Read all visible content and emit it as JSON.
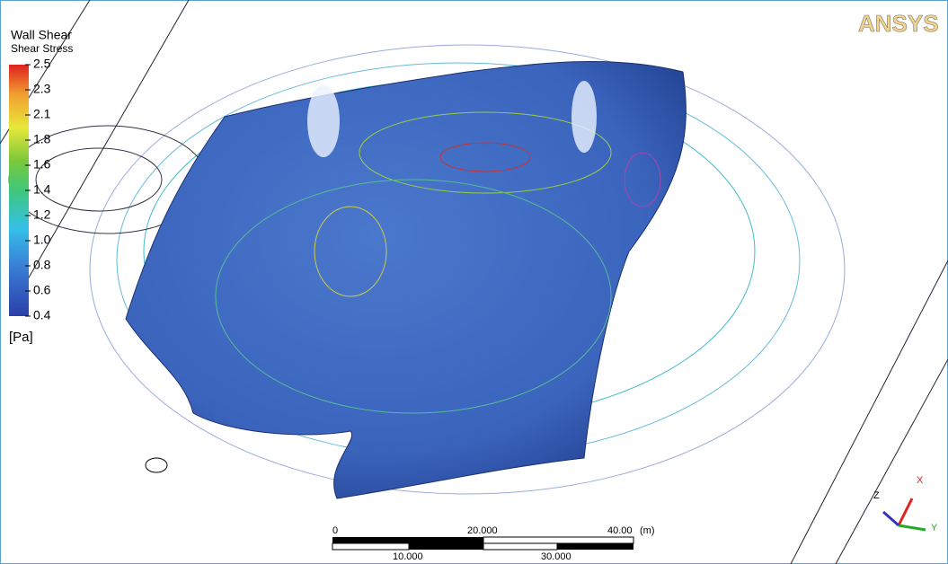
{
  "legend": {
    "title": "Wall Shear",
    "subtitle": "Shear Stress",
    "ticks": [
      "2.5",
      "2.3",
      "2.1",
      "1.8",
      "1.6",
      "1.4",
      "1.2",
      "1.0",
      "0.8",
      "0.6",
      "0.4"
    ],
    "unit": "[Pa]"
  },
  "logo": "ANSYS",
  "scale_bar": {
    "top_labels": [
      "0",
      "20.000",
      "40.00"
    ],
    "unit": "(m)",
    "bottom_labels": [
      "10.000",
      "30.000"
    ]
  },
  "axes_triad": {
    "x": "X",
    "y": "Y",
    "z": "Z"
  }
}
